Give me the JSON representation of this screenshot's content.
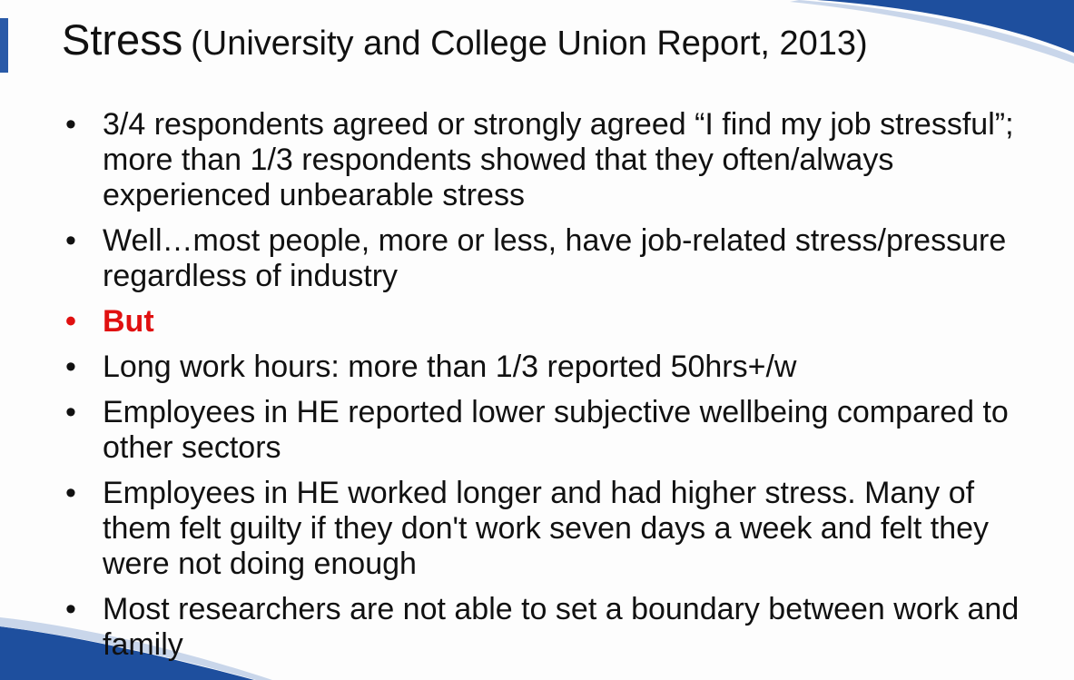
{
  "title": {
    "main": "Stress",
    "sub": "(University and College Union Report, 2013)"
  },
  "bullet_char": "•",
  "bullets": [
    {
      "text": "3/4 respondents agreed or strongly agreed “I find my job stressful”; more than 1/3 respondents showed that they often/always experienced unbearable stress"
    },
    {
      "text": "Well…most people, more or less, have job-related stress/pressure regardless of industry"
    },
    {
      "text": "But",
      "color": "#e01010"
    },
    {
      "text": "Long work hours: more than 1/3 reported 50hrs+/w"
    },
    {
      "text": "Employees in HE reported lower subjective wellbeing compared to other sectors"
    },
    {
      "text": "Employees in HE worked longer and had higher stress. Many of them felt guilty if they don't work seven days a week and felt they were not doing enough"
    },
    {
      "text": "Most researchers are not able to set a boundary between work and family"
    }
  ],
  "theme": {
    "accent": "#1e4f9e",
    "highlight": "#e01010"
  }
}
